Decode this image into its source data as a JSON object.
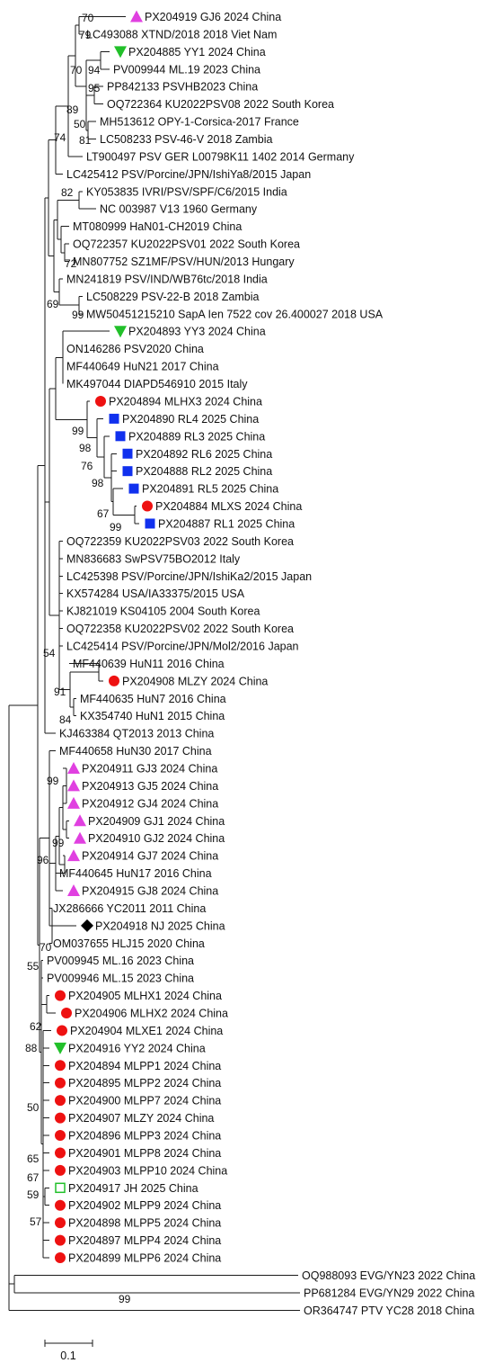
{
  "colors": {
    "branch": "#1a1a1a",
    "triangle_up": "#e040e0",
    "triangle_down": "#22c02a",
    "circle": "#ee1111",
    "square": "#1030ee",
    "diamond": "#000000",
    "open_square": "#22c02a"
  },
  "leaves": [
    {
      "label": "PX204919 GJ6 2024 China",
      "marker": "triangle-up"
    },
    {
      "label": "LC493088 XTND/2018 2018 Viet Nam",
      "marker": ""
    },
    {
      "label": "PX204885 YY1 2024 China",
      "marker": "triangle-down"
    },
    {
      "label": "PV009944 ML.19 2023 China",
      "marker": ""
    },
    {
      "label": "PP842133 PSVHB2023 China",
      "marker": ""
    },
    {
      "label": "OQ722364 KU2022PSV08 2022 South Korea",
      "marker": ""
    },
    {
      "label": "MH513612 OPY-1-Corsica-2017 France",
      "marker": ""
    },
    {
      "label": "LC508233 PSV-46-V 2018 Zambia",
      "marker": ""
    },
    {
      "label": "LT900497 PSV GER L00798K11 1402 2014 Germany",
      "marker": ""
    },
    {
      "label": "LC425412 PSV/Porcine/JPN/IshiYa8/2015 Japan",
      "marker": ""
    },
    {
      "label": "KY053835 IVRI/PSV/SPF/C6/2015 India",
      "marker": ""
    },
    {
      "label": "NC 003987 V13 1960 Germany",
      "marker": ""
    },
    {
      "label": "MT080999 HaN01-CH2019 China",
      "marker": ""
    },
    {
      "label": "OQ722357 KU2022PSV01 2022 South Korea",
      "marker": ""
    },
    {
      "label": "MN807752 SZ1MF/PSV/HUN/2013 Hungary",
      "marker": ""
    },
    {
      "label": "MN241819 PSV/IND/WB76tc/2018 India",
      "marker": ""
    },
    {
      "label": "LC508229 PSV-22-B 2018 Zambia",
      "marker": ""
    },
    {
      "label": "MW50451215210 SapA Ien 7522 cov 26.400027 2018 USA",
      "marker": ""
    },
    {
      "label": "PX204893 YY3 2024 China",
      "marker": "triangle-down"
    },
    {
      "label": "ON146286 PSV2020 China",
      "marker": ""
    },
    {
      "label": "MF440649 HuN21 2017 China",
      "marker": ""
    },
    {
      "label": "MK497044 DIAPD546910 2015 Italy",
      "marker": ""
    },
    {
      "label": "PX204894 MLHX3 2024 China",
      "marker": "circle"
    },
    {
      "label": "PX204890 RL4 2025 China",
      "marker": "square"
    },
    {
      "label": "PX204889 RL3 2025 China",
      "marker": "square"
    },
    {
      "label": "PX204892 RL6 2025 China",
      "marker": "square"
    },
    {
      "label": "PX204888 RL2 2025 China",
      "marker": "square"
    },
    {
      "label": "PX204891 RL5 2025 China",
      "marker": "square"
    },
    {
      "label": "PX204884 MLXS 2024 China",
      "marker": "circle"
    },
    {
      "label": "PX204887 RL1 2025 China",
      "marker": "square"
    },
    {
      "label": "OQ722359 KU2022PSV03 2022 South Korea",
      "marker": ""
    },
    {
      "label": "MN836683 SwPSV75BO2012 Italy",
      "marker": ""
    },
    {
      "label": "LC425398 PSV/Porcine/JPN/IshiKa2/2015 Japan",
      "marker": ""
    },
    {
      "label": "KX574284 USA/IA33375/2015 USA",
      "marker": ""
    },
    {
      "label": "KJ821019 KS04105 2004 South Korea",
      "marker": ""
    },
    {
      "label": "OQ722358 KU2022PSV02 2022 South Korea",
      "marker": ""
    },
    {
      "label": "LC425414 PSV/Porcine/JPN/Mol2/2016 Japan",
      "marker": ""
    },
    {
      "label": "MF440639 HuN11 2016 China",
      "marker": ""
    },
    {
      "label": "PX204908 MLZY 2024 China",
      "marker": "circle"
    },
    {
      "label": "MF440635 HuN7 2016 China",
      "marker": ""
    },
    {
      "label": "KX354740 HuN1 2015 China",
      "marker": ""
    },
    {
      "label": "KJ463384 QT2013 2013 China",
      "marker": ""
    },
    {
      "label": "MF440658 HuN30 2017 China",
      "marker": ""
    },
    {
      "label": "PX204911 GJ3 2024 China",
      "marker": "triangle-up"
    },
    {
      "label": "PX204913 GJ5 2024 China",
      "marker": "triangle-up"
    },
    {
      "label": "PX204912 GJ4 2024 China",
      "marker": "triangle-up"
    },
    {
      "label": "PX204909 GJ1 2024 China",
      "marker": "triangle-up"
    },
    {
      "label": "PX204910 GJ2 2024 China",
      "marker": "triangle-up"
    },
    {
      "label": "PX204914 GJ7 2024 China",
      "marker": "triangle-up"
    },
    {
      "label": "MF440645 HuN17 2016 China",
      "marker": ""
    },
    {
      "label": "PX204915 GJ8 2024 China",
      "marker": "triangle-up"
    },
    {
      "label": "JX286666 YC2011 2011 China",
      "marker": ""
    },
    {
      "label": "PX204918 NJ 2025 China",
      "marker": "diamond"
    },
    {
      "label": "OM037655 HLJ15 2020 China",
      "marker": ""
    },
    {
      "label": "PV009945 ML.16 2023 China",
      "marker": ""
    },
    {
      "label": "PV009946 ML.15 2023 China",
      "marker": ""
    },
    {
      "label": "PX204905 MLHX1 2024 China",
      "marker": "circle"
    },
    {
      "label": "PX204906 MLHX2 2024 China",
      "marker": "circle"
    },
    {
      "label": "PX204904 MLXE1 2024 China",
      "marker": "circle"
    },
    {
      "label": "PX204916 YY2 2024 China",
      "marker": "triangle-down"
    },
    {
      "label": "PX204894 MLPP1 2024 China",
      "marker": "circle"
    },
    {
      "label": "PX204895 MLPP2 2024 China",
      "marker": "circle"
    },
    {
      "label": "PX204900 MLPP7 2024 China",
      "marker": "circle"
    },
    {
      "label": "PX204907 MLZY 2024 China",
      "marker": "circle"
    },
    {
      "label": "PX204896 MLPP3 2024 China",
      "marker": "circle"
    },
    {
      "label": "PX204901 MLPP8 2024 China",
      "marker": "circle"
    },
    {
      "label": "PX204903 MLPP10 2024 China",
      "marker": "circle"
    },
    {
      "label": "PX204917 JH 2025 China",
      "marker": "open-square"
    },
    {
      "label": "PX204902 MLPP9 2024 China",
      "marker": "circle"
    },
    {
      "label": "PX204898 MLPP5 2024 China",
      "marker": "circle"
    },
    {
      "label": "PX204897 MLPP4 2024 China",
      "marker": "circle"
    },
    {
      "label": "PX204899 MLPP6 2024 China",
      "marker": "circle"
    },
    {
      "label": "OQ988093 EVG/YN23 2022 China",
      "marker": ""
    },
    {
      "label": "PP681284 EVG/YN29 2022 China",
      "marker": ""
    },
    {
      "label": "OR364747 PTV YC28 2018 China",
      "marker": ""
    }
  ],
  "bootstrap": [
    "70",
    "79",
    "70",
    "94",
    "95",
    "89",
    "50",
    "81",
    "74",
    "82",
    "72",
    "69",
    "99",
    "99",
    "98",
    "76",
    "98",
    "67",
    "99",
    "54",
    "91",
    "84",
    "99",
    "99",
    "96",
    "70",
    "55",
    "62",
    "88",
    "50",
    "65",
    "67",
    "59",
    "57",
    "99"
  ],
  "scale_bar": {
    "label": "0.1"
  }
}
